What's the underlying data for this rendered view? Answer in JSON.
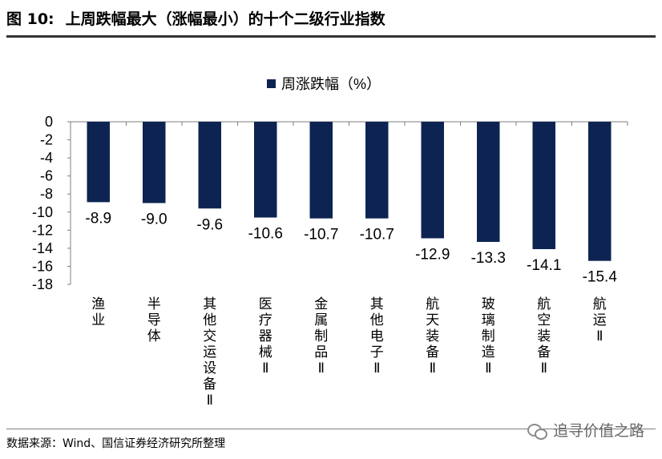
{
  "header": {
    "prefix": "图 10:",
    "title": "上周跌幅最大（涨幅最小）的十个二级行业指数"
  },
  "footer": {
    "source": "数据来源：Wind、国信证券经济研究所整理",
    "watermark": "追寻价值之路"
  },
  "chart_data": {
    "type": "bar",
    "categories": [
      "渔业",
      "半导体",
      "其他交运设备Ⅱ",
      "医疗器械Ⅱ",
      "金属制品Ⅱ",
      "其他电子Ⅱ",
      "航天装备Ⅱ",
      "玻璃制造Ⅱ",
      "航空装备Ⅱ",
      "航运Ⅱ"
    ],
    "series": [
      {
        "name": "周涨跌幅（%）",
        "values": [
          -8.9,
          -9.0,
          -9.6,
          -10.6,
          -10.7,
          -10.7,
          -12.9,
          -13.3,
          -14.1,
          -15.4
        ]
      }
    ],
    "data_labels": [
      "-8.9",
      "-9.0",
      "-9.6",
      "-10.6",
      "-10.7",
      "-10.7",
      "-12.9",
      "-13.3",
      "-14.1",
      "-15.4"
    ],
    "ylim": [
      -18,
      0
    ],
    "yticks": [
      0,
      -2,
      -4,
      -6,
      -8,
      -10,
      -12,
      -14,
      -16,
      -18
    ],
    "xlabel": "",
    "ylabel": "",
    "legend": "top-center",
    "grid": false,
    "bar_color": "#0d2452"
  }
}
